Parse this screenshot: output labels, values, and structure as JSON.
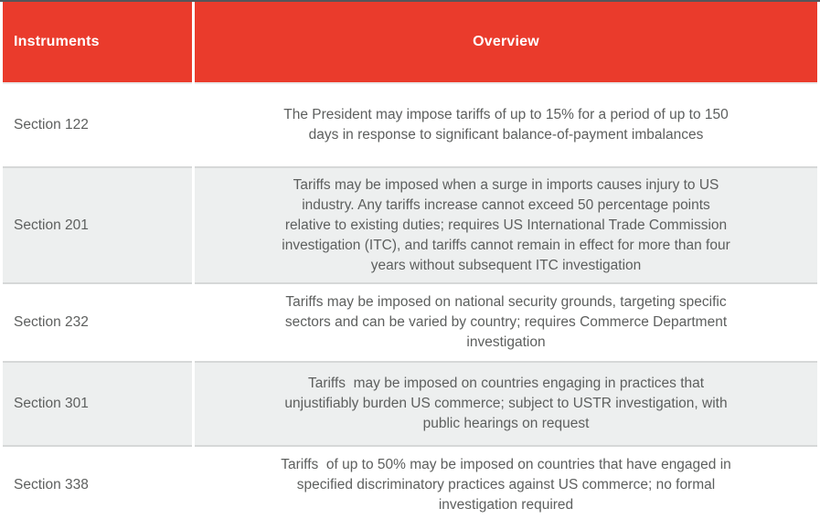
{
  "colors": {
    "header_bg": "#ea3b2c",
    "header_text": "#ffffff",
    "body_text": "#5d5f5e",
    "zebra_row_bg": "#edefef",
    "row_separator": "#d6d8d8",
    "top_border": "#55565a",
    "bottom_border": "#212225"
  },
  "table": {
    "columns": [
      {
        "label": "Instruments"
      },
      {
        "label": "Overview"
      }
    ],
    "rows": [
      {
        "instrument": "Section 122",
        "overview": "The President may impose tariffs of up to 15% for a period of up to 150\ndays in response to significant balance-of-payment imbalances"
      },
      {
        "instrument": "Section 201",
        "overview": "Tariffs may be imposed when a surge in imports causes injury to US\nindustry. Any tariffs increase cannot exceed 50 percentage points\nrelative to existing duties; requires US International Trade Commission\ninvestigation (ITC), and tariffs cannot remain in effect for more than four\nyears without subsequent ITC investigation"
      },
      {
        "instrument": "Section 232",
        "overview": "Tariffs may be imposed on national security grounds, targeting specific\nsectors and can be varied by country; requires Commerce Department\ninvestigation"
      },
      {
        "instrument": "Section 301",
        "overview": "Tariffs  may be imposed on countries engaging in practices that\nunjustifiably burden US commerce; subject to USTR investigation, with\npublic hearings on request"
      },
      {
        "instrument": "Section 338",
        "overview": "Tariffs  of up to 50% may be imposed on countries that have engaged in\nspecified discriminatory practices against US commerce; no formal\ninvestigation required"
      }
    ]
  }
}
